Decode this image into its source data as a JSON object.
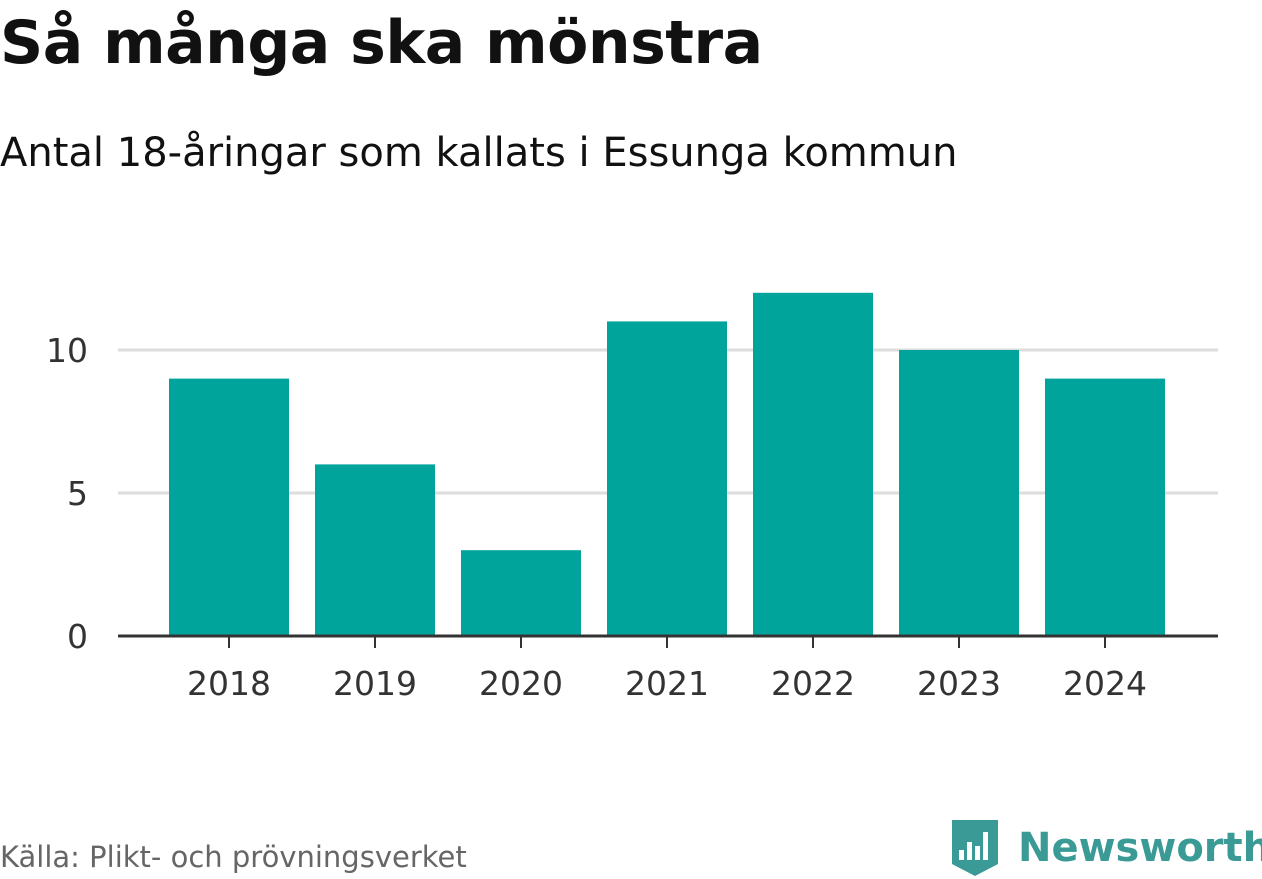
{
  "title": "Så många ska mönstra",
  "subtitle": "Antal 18-åringar som kallats i Essunga kommun",
  "source": "Källa: Plikt- och prövningsverket",
  "brand": {
    "name": "Newsworthy",
    "icon": "newsworthy-logo-icon",
    "color": "#3a9a96"
  },
  "chart_data": {
    "type": "bar",
    "categories": [
      "2018",
      "2019",
      "2020",
      "2021",
      "2022",
      "2023",
      "2024"
    ],
    "values": [
      9,
      6,
      3,
      11,
      12,
      10,
      9
    ],
    "ylim": [
      0,
      12
    ],
    "yticks": [
      0,
      5,
      10
    ],
    "grid": true,
    "xlabel": "",
    "ylabel": "",
    "bar_color": "#00a49a"
  }
}
